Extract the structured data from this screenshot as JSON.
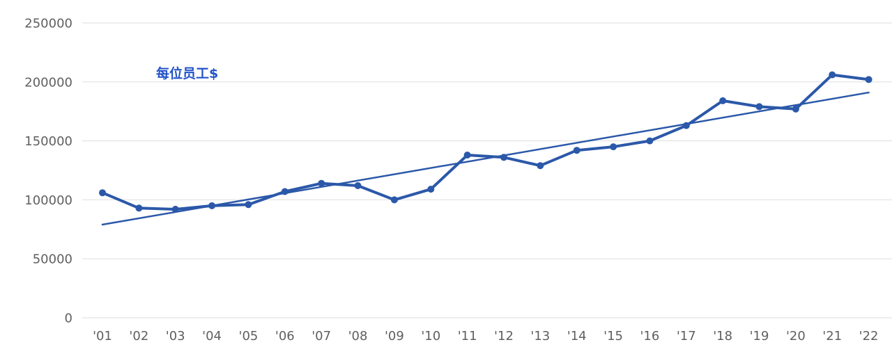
{
  "chart_data": {
    "type": "line",
    "title": "",
    "series_label": "每位员工$",
    "categories": [
      "'01",
      "'02",
      "'03",
      "'04",
      "'05",
      "'06",
      "'07",
      "'08",
      "'09",
      "'10",
      "'11",
      "'12",
      "'13",
      "'14",
      "'15",
      "'16",
      "'17",
      "'18",
      "'19",
      "'20",
      "'21",
      "'22"
    ],
    "series": [
      {
        "name": "每位员工$",
        "values": [
          106000,
          93000,
          92000,
          95000,
          96000,
          107000,
          114000,
          112000,
          100000,
          109000,
          138000,
          136000,
          129000,
          142000,
          145000,
          150000,
          163000,
          184000,
          179000,
          177000,
          206000,
          202000
        ]
      }
    ],
    "trendline": {
      "type": "linear",
      "start_value": 79000,
      "end_value": 191000
    },
    "xlabel": "",
    "ylabel": "",
    "ylim": [
      0,
      250000
    ],
    "yticks": [
      0,
      50000,
      100000,
      150000,
      200000,
      250000
    ],
    "ytick_labels": [
      "0",
      "50000",
      "100000",
      "150000",
      "200000",
      "250000"
    ],
    "legend_position": "none",
    "grid": "horizontal",
    "colors": {
      "series": "#2B58A9",
      "trendline": "#2B58A9",
      "series_label": "#2353C8",
      "grid": "#DEDEDE",
      "axis_text": "#5F5F5F",
      "background": "#FFFFFF"
    }
  }
}
